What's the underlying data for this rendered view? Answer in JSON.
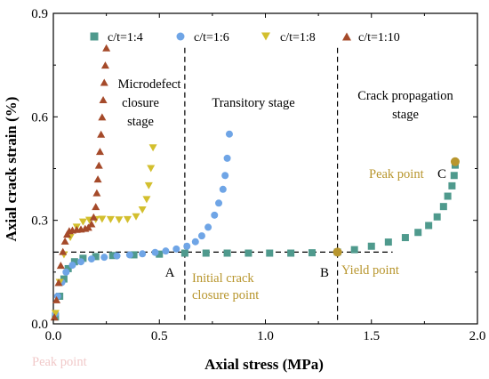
{
  "chart_data": {
    "type": "scatter",
    "xlabel": "Axial stress (MPa)",
    "ylabel": "Axial crack strain (%)",
    "xlim": [
      0,
      2.0
    ],
    "ylim": [
      0,
      0.9
    ],
    "xticks": [
      "0.0",
      "0.5",
      "1.0",
      "1.5",
      "2.0"
    ],
    "yticks": [
      "0.0",
      "0.3",
      "0.6",
      "0.9"
    ],
    "grid": false,
    "legend_position": "top",
    "colors": {
      "accent": "#b8962e",
      "dashed": "#000000"
    },
    "series": [
      {
        "name": "c/t=1:4",
        "marker": "square",
        "color": "#4f9a8d",
        "x": [
          0.01,
          0.03,
          0.05,
          0.07,
          0.1,
          0.14,
          0.2,
          0.28,
          0.38,
          0.5,
          0.62,
          0.72,
          0.82,
          0.92,
          1.02,
          1.12,
          1.22,
          1.34,
          1.42,
          1.5,
          1.58,
          1.66,
          1.72,
          1.77,
          1.81,
          1.84,
          1.86,
          1.88,
          1.89,
          1.895
        ],
        "y": [
          0.02,
          0.08,
          0.13,
          0.16,
          0.18,
          0.19,
          0.195,
          0.198,
          0.2,
          0.202,
          0.205,
          0.205,
          0.205,
          0.205,
          0.205,
          0.205,
          0.206,
          0.208,
          0.215,
          0.225,
          0.237,
          0.25,
          0.265,
          0.285,
          0.31,
          0.34,
          0.37,
          0.4,
          0.43,
          0.46
        ]
      },
      {
        "name": "c/t=1:6",
        "marker": "circle",
        "color": "#6fa5e6",
        "x": [
          0.01,
          0.02,
          0.04,
          0.06,
          0.09,
          0.13,
          0.18,
          0.24,
          0.3,
          0.36,
          0.42,
          0.48,
          0.53,
          0.58,
          0.63,
          0.67,
          0.7,
          0.73,
          0.76,
          0.78,
          0.8,
          0.81,
          0.82,
          0.83
        ],
        "y": [
          0.03,
          0.08,
          0.12,
          0.15,
          0.17,
          0.18,
          0.188,
          0.193,
          0.197,
          0.2,
          0.203,
          0.207,
          0.211,
          0.217,
          0.225,
          0.238,
          0.255,
          0.28,
          0.315,
          0.35,
          0.39,
          0.43,
          0.48,
          0.55
        ]
      },
      {
        "name": "c/t=1:8",
        "marker": "triangle-down",
        "color": "#d3bf2e",
        "x": [
          0.01,
          0.03,
          0.05,
          0.08,
          0.11,
          0.14,
          0.17,
          0.2,
          0.23,
          0.27,
          0.31,
          0.35,
          0.39,
          0.42,
          0.44,
          0.45,
          0.46,
          0.47
        ],
        "y": [
          0.03,
          0.12,
          0.2,
          0.25,
          0.28,
          0.295,
          0.3,
          0.302,
          0.303,
          0.302,
          0.301,
          0.302,
          0.31,
          0.33,
          0.36,
          0.4,
          0.45,
          0.51
        ]
      },
      {
        "name": "c/t=1:10",
        "marker": "triangle-up",
        "color": "#a54a2a",
        "x": [
          0.005,
          0.015,
          0.025,
          0.035,
          0.045,
          0.055,
          0.065,
          0.075,
          0.09,
          0.11,
          0.13,
          0.15,
          0.165,
          0.18,
          0.19,
          0.2,
          0.205,
          0.21,
          0.215,
          0.22,
          0.225,
          0.23,
          0.235,
          0.24,
          0.245,
          0.25
        ],
        "y": [
          0.02,
          0.07,
          0.12,
          0.17,
          0.21,
          0.24,
          0.26,
          0.27,
          0.272,
          0.274,
          0.275,
          0.277,
          0.28,
          0.29,
          0.31,
          0.34,
          0.38,
          0.42,
          0.46,
          0.5,
          0.55,
          0.6,
          0.65,
          0.7,
          0.75,
          0.8
        ]
      }
    ],
    "reference_lines": {
      "vertical": [
        0.62,
        1.34
      ],
      "horizontal": {
        "y": 0.208,
        "x_from": 0.0,
        "x_to": 1.6
      }
    },
    "stages": {
      "first": [
        "Microdefect",
        "closure",
        "stage"
      ],
      "second": [
        "Transitory stage"
      ],
      "third": [
        "Crack propagation",
        "stage"
      ]
    },
    "points": {
      "a": {
        "label": "A",
        "x": 0.62,
        "y": 0.208
      },
      "b": {
        "label": "B",
        "x": 1.34,
        "y": 0.208
      },
      "c": {
        "label": "C",
        "x": 1.895,
        "y": 0.47
      }
    },
    "annotations": {
      "initial_crack": [
        "Initial crack",
        "closure point"
      ],
      "yield": "Yield point",
      "peak_right": "Peak point",
      "peak_left": "Peak point"
    }
  }
}
